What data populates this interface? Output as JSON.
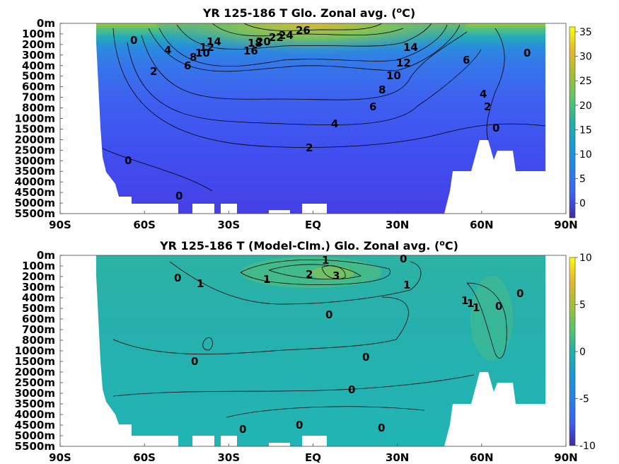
{
  "chart_data": [
    {
      "type": "heatmap",
      "title_main": "YR 125-186 T Glo. Zonal avg. (",
      "title_sup": "o",
      "title_end": "C)",
      "xticks": [
        "90S",
        "60S",
        "30S",
        "EQ",
        "30N",
        "60N",
        "90N"
      ],
      "xtick_values": [
        -90,
        -60,
        -30,
        0,
        30,
        60,
        90
      ],
      "yticks": [
        "0m",
        "100m",
        "200m",
        "300m",
        "400m",
        "500m",
        "600m",
        "700m",
        "800m",
        "1000m",
        "1500m",
        "2000m",
        "2500m",
        "3000m",
        "3500m",
        "4000m",
        "4500m",
        "5000m",
        "5500m"
      ],
      "xlim": [
        -90,
        90
      ],
      "colorbar": {
        "ticks": [
          "35",
          "30",
          "25",
          "20",
          "15",
          "10",
          "5",
          "0"
        ],
        "tick_values": [
          35,
          30,
          25,
          20,
          15,
          10,
          5,
          0
        ],
        "min": -3,
        "max": 36
      },
      "contour_labels": [
        "26",
        "24",
        "22",
        "20",
        "18",
        "16",
        "14",
        "12",
        "10",
        "8",
        "6",
        "4",
        "2",
        "0",
        "14",
        "12",
        "10",
        "8",
        "6",
        "4",
        "2",
        "0",
        "6",
        "4",
        "2",
        "0",
        "0",
        "0"
      ],
      "grid": false,
      "colormap": "parula"
    },
    {
      "type": "heatmap",
      "title_main": "YR 125-186 T (Model-Clm.) Glo. Zonal avg. (",
      "title_sup": "o",
      "title_end": "C)",
      "xticks": [
        "90S",
        "60S",
        "30S",
        "EQ",
        "30N",
        "60N",
        "90N"
      ],
      "xtick_values": [
        -90,
        -60,
        -30,
        0,
        30,
        60,
        90
      ],
      "yticks": [
        "0m",
        "100m",
        "200m",
        "300m",
        "400m",
        "500m",
        "600m",
        "700m",
        "800m",
        "1000m",
        "1500m",
        "2000m",
        "2500m",
        "3000m",
        "3500m",
        "4000m",
        "4500m",
        "5000m",
        "5500m"
      ],
      "xlim": [
        -90,
        90
      ],
      "colorbar": {
        "ticks": [
          "10",
          "5",
          "0",
          "-5",
          "-10"
        ],
        "tick_values": [
          10,
          5,
          0,
          -5,
          -10
        ],
        "min": -10,
        "max": 10
      },
      "contour_labels": [
        "1",
        "0",
        "2",
        "3",
        "1",
        "1",
        "0",
        "1",
        "1",
        "1",
        "1",
        "0",
        "0",
        "0",
        "0",
        "0",
        "0",
        "0",
        "0",
        "0"
      ],
      "grid": false,
      "colormap": "parula"
    }
  ]
}
